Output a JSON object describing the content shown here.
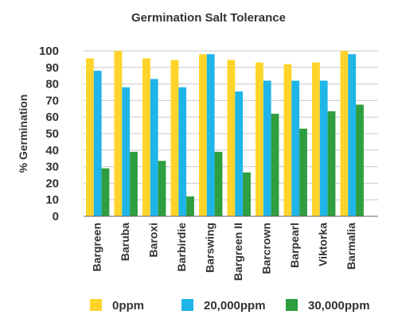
{
  "chart_data": {
    "type": "bar",
    "title": "Germination Salt Tolerance",
    "ylabel": "% Germination",
    "xlabel": "",
    "ylim": [
      0,
      100
    ],
    "yticks": [
      0,
      10,
      20,
      30,
      40,
      50,
      60,
      70,
      80,
      90,
      100
    ],
    "grid": true,
    "legend_position": "bottom",
    "categories": [
      "Bargreen",
      "Baruba",
      "Baroxi",
      "Barbirdie",
      "Barswing",
      "Bargreen II",
      "Barcrown",
      "Barpearl",
      "Viktorka",
      "Barmalia"
    ],
    "series": [
      {
        "name": "0ppm",
        "color": "#FFD42A",
        "values": [
          95.5,
          100,
          95.5,
          94.5,
          98,
          94.5,
          93,
          92,
          93,
          100
        ]
      },
      {
        "name": "20,000ppm",
        "color": "#1FB5E8",
        "values": [
          88,
          78,
          83,
          78,
          98,
          75.5,
          82,
          82,
          82,
          98
        ]
      },
      {
        "name": "30,000ppm",
        "color": "#2E9E3F",
        "values": [
          29,
          39,
          33.5,
          12,
          39,
          26.5,
          62,
          53,
          63.5,
          67.5
        ]
      }
    ]
  }
}
